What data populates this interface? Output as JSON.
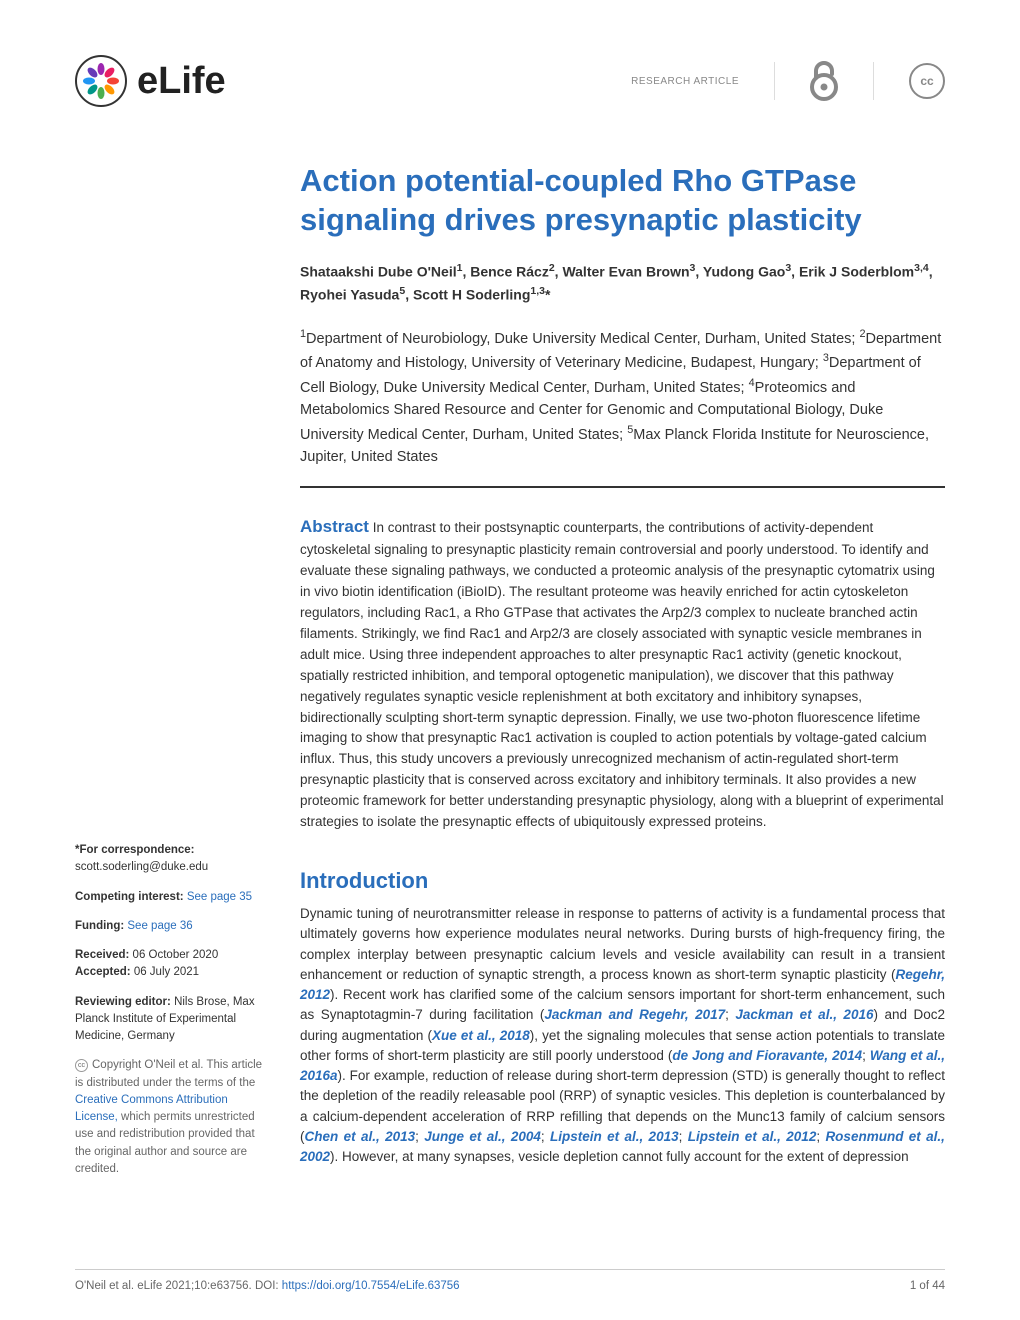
{
  "header": {
    "journal_name": "eLife",
    "article_type": "RESEARCH ARTICLE",
    "cc_label": "cc"
  },
  "title": "Action potential-coupled Rho GTPase signaling drives presynaptic plasticity",
  "authors_html": "Shataakshi Dube O'Neil<sup>1</sup>, Bence Rácz<sup>2</sup>, Walter Evan Brown<sup>3</sup>, Yudong Gao<sup>3</sup>, Erik J Soderblom<sup>3,4</sup>, Ryohei Yasuda<sup>5</sup>, Scott H Soderling<sup>1,3</sup>*",
  "affiliations_html": "<sup>1</sup>Department of Neurobiology, Duke University Medical Center, Durham, United States; <sup>2</sup>Department of Anatomy and Histology, University of Veterinary Medicine, Budapest, Hungary; <sup>3</sup>Department of Cell Biology, Duke University Medical Center, Durham, United States; <sup>4</sup>Proteomics and Metabolomics Shared Resource and Center for Genomic and Computational Biology, Duke University Medical Center, Durham, United States; <sup>5</sup>Max Planck Florida Institute for Neuroscience, Jupiter, United States",
  "abstract": {
    "label": "Abstract",
    "text": "In contrast to their postsynaptic counterparts, the contributions of activity-dependent cytoskeletal signaling to presynaptic plasticity remain controversial and poorly understood. To identify and evaluate these signaling pathways, we conducted a proteomic analysis of the presynaptic cytomatrix using in vivo biotin identification (iBioID). The resultant proteome was heavily enriched for actin cytoskeleton regulators, including Rac1, a Rho GTPase that activates the Arp2/3 complex to nucleate branched actin filaments. Strikingly, we find Rac1 and Arp2/3 are closely associated with synaptic vesicle membranes in adult mice. Using three independent approaches to alter presynaptic Rac1 activity (genetic knockout, spatially restricted inhibition, and temporal optogenetic manipulation), we discover that this pathway negatively regulates synaptic vesicle replenishment at both excitatory and inhibitory synapses, bidirectionally sculpting short-term synaptic depression. Finally, we use two-photon fluorescence lifetime imaging to show that presynaptic Rac1 activation is coupled to action potentials by voltage-gated calcium influx. Thus, this study uncovers a previously unrecognized mechanism of actin-regulated short-term presynaptic plasticity that is conserved across excitatory and inhibitory terminals. It also provides a new proteomic framework for better understanding presynaptic physiology, along with a blueprint of experimental strategies to isolate the presynaptic effects of ubiquitously expressed proteins."
  },
  "introduction": {
    "heading": "Introduction",
    "body_html": "Dynamic tuning of neurotransmitter release in response to patterns of activity is a fundamental process that ultimately governs how experience modulates neural networks. During bursts of high-frequency firing, the complex interplay between presynaptic calcium levels and vesicle availability can result in a transient enhancement or reduction of synaptic strength, a process known as short-term synaptic plasticity (<span class=\"ref\">Regehr, 2012</span>). Recent work has clarified some of the calcium sensors important for short-term enhancement, such as Synaptotagmin-7 during facilitation (<span class=\"ref\">Jackman and Regehr, 2017</span>; <span class=\"ref\">Jackman et al., 2016</span>) and Doc2 during augmentation (<span class=\"ref\">Xue et al., 2018</span>), yet the signaling molecules that sense action potentials to translate other forms of short-term plasticity are still poorly understood (<span class=\"ref\">de Jong and Fioravante, 2014</span>; <span class=\"ref\">Wang et al., 2016a</span>). For example, reduction of release during short-term depression (STD) is generally thought to reflect the depletion of the readily releasable pool (RRP) of synaptic vesicles. This depletion is counterbalanced by a calcium-dependent acceleration of RRP refilling that depends on the Munc13 family of calcium sensors (<span class=\"ref\">Chen et al., 2013</span>; <span class=\"ref\">Junge et al., 2004</span>; <span class=\"ref\">Lipstein et al., 2013</span>; <span class=\"ref\">Lipstein et al., 2012</span>; <span class=\"ref\">Rosenmund et al., 2002</span>). However, at many synapses, vesicle depletion cannot fully account for the extent of depression"
  },
  "sidebar": {
    "correspondence_label": "*For correspondence:",
    "correspondence_email": "scott.soderling@duke.edu",
    "competing_label": "Competing interest:",
    "competing_link": "See page 35",
    "funding_label": "Funding:",
    "funding_link": "See page 36",
    "received_label": "Received:",
    "received_date": "06 October 2020",
    "accepted_label": "Accepted:",
    "accepted_date": "06 July 2021",
    "reviewing_label": "Reviewing editor:",
    "reviewing_editor": "Nils Brose, Max Planck Institute of Experimental Medicine, Germany",
    "copyright_html": "Copyright O'Neil et al. This article is distributed under the terms of the <span class=\"link\">Creative Commons Attribution License,</span> which permits unrestricted use and redistribution provided that the original author and source are credited."
  },
  "footer": {
    "citation": "O'Neil et al. eLife 2021;10:e63756.",
    "doi_label": "DOI:",
    "doi_link": "https://doi.org/10.7554/eLife.63756",
    "page_num": "1 of 44"
  },
  "colors": {
    "link_blue": "#2a6ebb",
    "text_main": "#333333",
    "text_muted": "#888888"
  }
}
